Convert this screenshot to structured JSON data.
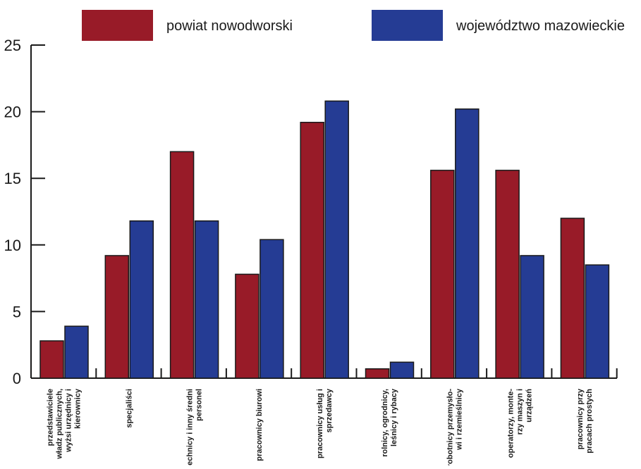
{
  "chart_data": {
    "type": "bar",
    "categories": [
      [
        "przedstawiciele",
        "władz publicznych,",
        "wyżsi urzędnicy i",
        "kierownicy"
      ],
      [
        "specjaliści"
      ],
      [
        "technicy i inny średni",
        "personel"
      ],
      [
        "pracownicy biurowi"
      ],
      [
        "pracownicy usług i",
        "sprzedawcy"
      ],
      [
        "rolnicy, ogrodnicy,",
        "leśnicy i rybacy"
      ],
      [
        "robotnicy przemysło-",
        "wi i rzemieślnicy"
      ],
      [
        "operatorzy, monte-",
        "rzy maszyn i",
        "urządzeń"
      ],
      [
        "pracownicy przy",
        "pracach prostych"
      ]
    ],
    "series": [
      {
        "name": "powiat nowodworski",
        "color": "#981b28",
        "values": [
          2.8,
          9.2,
          17.0,
          7.8,
          19.2,
          0.7,
          15.6,
          15.6,
          12.0
        ]
      },
      {
        "name": "województwo mazowieckie",
        "color": "#253c94",
        "values": [
          3.9,
          11.8,
          11.8,
          10.4,
          20.8,
          1.2,
          20.2,
          9.2,
          8.5
        ]
      }
    ],
    "yticks": [
      0,
      5,
      10,
      15,
      20,
      25
    ],
    "ylim": [
      0,
      25
    ],
    "grid": false,
    "legend_position": "top"
  }
}
